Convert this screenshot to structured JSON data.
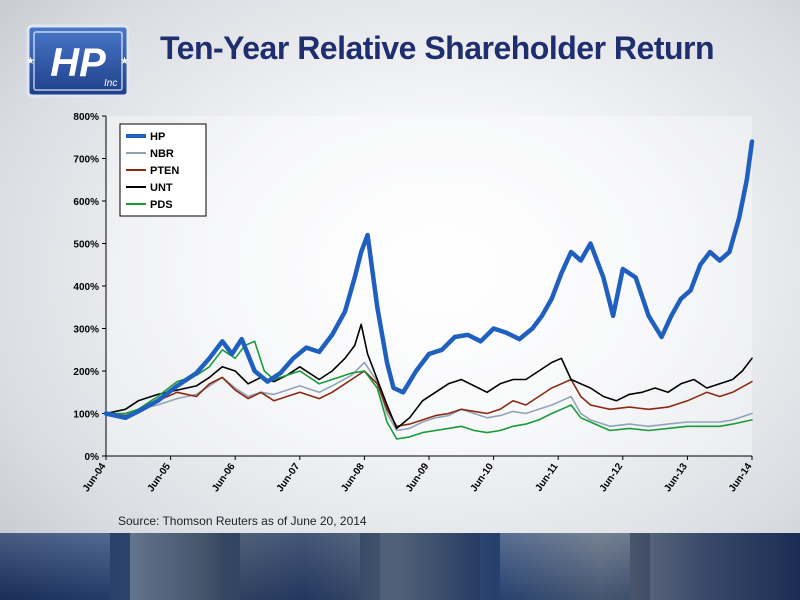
{
  "header": {
    "title": "Ten-Year Relative Shareholder Return",
    "logo_text": "H&P Inc"
  },
  "footer": {
    "source": "Source: Thomson Reuters as of June 20, 2014"
  },
  "colors": {
    "title": "#1e2e6e",
    "HP": "#1f5fc0",
    "NBR": "#8fa4b8",
    "PTEN": "#8b2a12",
    "UNT": "#000000",
    "PDS": "#1a9a3a"
  },
  "chart_data": {
    "type": "line",
    "title": "",
    "xlabel": "",
    "ylabel": "",
    "ylim": [
      0,
      800
    ],
    "yticks": [
      0,
      100,
      200,
      300,
      400,
      500,
      600,
      700,
      800
    ],
    "ytick_labels": [
      "0%",
      "100%",
      "200%",
      "300%",
      "400%",
      "500%",
      "600%",
      "700%",
      "800%"
    ],
    "xlim": [
      2004.5,
      2014.5
    ],
    "xticks": [
      2004.5,
      2005.5,
      2006.5,
      2007.5,
      2008.5,
      2009.5,
      2010.5,
      2011.5,
      2012.5,
      2013.5,
      2014.5
    ],
    "xtick_labels": [
      "Jun-04",
      "Jun-05",
      "Jun-06",
      "Jun-07",
      "Jun-08",
      "Jun-09",
      "Jun-10",
      "Jun-11",
      "Jun-12",
      "Jun-13",
      "Jun-14"
    ],
    "legend_position": "top-left",
    "grid": false,
    "series": [
      {
        "name": "HP",
        "color": "#1f5fc0",
        "width": 4.5,
        "x": [
          2004.5,
          2004.8,
          2005.0,
          2005.3,
          2005.6,
          2005.9,
          2006.1,
          2006.3,
          2006.45,
          2006.6,
          2006.8,
          2007.0,
          2007.2,
          2007.4,
          2007.6,
          2007.8,
          2008.0,
          2008.2,
          2008.35,
          2008.45,
          2008.55,
          2008.7,
          2008.85,
          2008.95,
          2009.1,
          2009.3,
          2009.5,
          2009.7,
          2009.9,
          2010.1,
          2010.3,
          2010.5,
          2010.7,
          2010.9,
          2011.1,
          2011.25,
          2011.4,
          2011.55,
          2011.7,
          2011.85,
          2012.0,
          2012.2,
          2012.35,
          2012.5,
          2012.7,
          2012.9,
          2013.1,
          2013.25,
          2013.4,
          2013.55,
          2013.7,
          2013.85,
          2014.0,
          2014.15,
          2014.3,
          2014.42,
          2014.5
        ],
        "values": [
          100,
          90,
          105,
          130,
          165,
          195,
          230,
          270,
          240,
          275,
          200,
          175,
          195,
          230,
          255,
          245,
          285,
          340,
          420,
          480,
          520,
          350,
          220,
          160,
          150,
          200,
          240,
          250,
          280,
          285,
          270,
          300,
          290,
          275,
          300,
          330,
          370,
          430,
          480,
          460,
          500,
          420,
          330,
          440,
          420,
          330,
          280,
          330,
          370,
          390,
          450,
          480,
          460,
          480,
          560,
          650,
          740
        ]
      },
      {
        "name": "NBR",
        "color": "#8fa4b8",
        "width": 1.6,
        "x": [
          2004.5,
          2004.8,
          2005.0,
          2005.3,
          2005.6,
          2005.9,
          2006.1,
          2006.3,
          2006.5,
          2006.7,
          2006.9,
          2007.1,
          2007.3,
          2007.5,
          2007.8,
          2008.0,
          2008.3,
          2008.5,
          2008.7,
          2008.85,
          2009.0,
          2009.2,
          2009.4,
          2009.6,
          2009.8,
          2010.0,
          2010.2,
          2010.4,
          2010.6,
          2010.8,
          2011.0,
          2011.2,
          2011.4,
          2011.55,
          2011.7,
          2011.85,
          2012.0,
          2012.3,
          2012.6,
          2012.9,
          2013.2,
          2013.5,
          2013.8,
          2014.0,
          2014.2,
          2014.5
        ],
        "values": [
          100,
          95,
          110,
          120,
          135,
          145,
          165,
          185,
          160,
          140,
          150,
          145,
          155,
          165,
          150,
          165,
          190,
          220,
          175,
          100,
          60,
          65,
          80,
          90,
          95,
          110,
          100,
          90,
          95,
          105,
          100,
          110,
          120,
          130,
          140,
          100,
          85,
          70,
          75,
          70,
          75,
          80,
          80,
          80,
          85,
          100
        ]
      },
      {
        "name": "PTEN",
        "color": "#8b2a12",
        "width": 1.6,
        "x": [
          2004.5,
          2004.8,
          2005.0,
          2005.3,
          2005.6,
          2005.9,
          2006.1,
          2006.3,
          2006.5,
          2006.7,
          2006.9,
          2007.1,
          2007.3,
          2007.5,
          2007.8,
          2008.0,
          2008.3,
          2008.5,
          2008.7,
          2008.85,
          2009.0,
          2009.2,
          2009.4,
          2009.6,
          2009.8,
          2010.0,
          2010.2,
          2010.4,
          2010.6,
          2010.8,
          2011.0,
          2011.2,
          2011.4,
          2011.55,
          2011.7,
          2011.85,
          2012.0,
          2012.3,
          2012.6,
          2012.9,
          2013.2,
          2013.5,
          2013.8,
          2014.0,
          2014.2,
          2014.5
        ],
        "values": [
          100,
          95,
          105,
          130,
          150,
          140,
          170,
          185,
          155,
          135,
          150,
          130,
          140,
          150,
          135,
          150,
          180,
          200,
          170,
          110,
          70,
          75,
          85,
          95,
          100,
          110,
          105,
          100,
          110,
          130,
          120,
          140,
          160,
          170,
          180,
          140,
          120,
          110,
          115,
          110,
          115,
          130,
          150,
          140,
          150,
          175
        ]
      },
      {
        "name": "UNT",
        "color": "#000000",
        "width": 1.6,
        "x": [
          2004.5,
          2004.8,
          2005.0,
          2005.3,
          2005.6,
          2005.9,
          2006.1,
          2006.3,
          2006.5,
          2006.7,
          2006.9,
          2007.1,
          2007.3,
          2007.5,
          2007.8,
          2008.0,
          2008.2,
          2008.35,
          2008.45,
          2008.55,
          2008.7,
          2008.85,
          2009.0,
          2009.2,
          2009.4,
          2009.6,
          2009.8,
          2010.0,
          2010.2,
          2010.4,
          2010.6,
          2010.8,
          2011.0,
          2011.2,
          2011.4,
          2011.55,
          2011.7,
          2011.85,
          2012.0,
          2012.2,
          2012.4,
          2012.6,
          2012.8,
          2013.0,
          2013.2,
          2013.4,
          2013.6,
          2013.8,
          2014.0,
          2014.2,
          2014.35,
          2014.5
        ],
        "values": [
          100,
          110,
          130,
          145,
          155,
          165,
          185,
          210,
          200,
          170,
          185,
          175,
          190,
          210,
          180,
          200,
          230,
          260,
          310,
          240,
          180,
          120,
          65,
          90,
          130,
          150,
          170,
          180,
          165,
          150,
          170,
          180,
          180,
          200,
          220,
          230,
          180,
          170,
          160,
          140,
          130,
          145,
          150,
          160,
          150,
          170,
          180,
          160,
          170,
          180,
          200,
          230
        ]
      },
      {
        "name": "PDS",
        "color": "#1a9a3a",
        "width": 1.6,
        "x": [
          2004.5,
          2004.8,
          2005.0,
          2005.3,
          2005.6,
          2005.9,
          2006.1,
          2006.3,
          2006.5,
          2006.65,
          2006.8,
          2006.95,
          2007.1,
          2007.3,
          2007.5,
          2007.8,
          2008.0,
          2008.3,
          2008.5,
          2008.7,
          2008.85,
          2009.0,
          2009.2,
          2009.4,
          2009.6,
          2009.8,
          2010.0,
          2010.2,
          2010.4,
          2010.6,
          2010.8,
          2011.0,
          2011.2,
          2011.4,
          2011.55,
          2011.7,
          2011.85,
          2012.0,
          2012.3,
          2012.6,
          2012.9,
          2013.2,
          2013.5,
          2013.8,
          2014.0,
          2014.2,
          2014.5
        ],
        "values": [
          100,
          100,
          110,
          140,
          175,
          190,
          210,
          250,
          230,
          260,
          270,
          200,
          180,
          190,
          200,
          170,
          180,
          195,
          200,
          160,
          80,
          40,
          45,
          55,
          60,
          65,
          70,
          60,
          55,
          60,
          70,
          75,
          85,
          100,
          110,
          120,
          90,
          80,
          60,
          65,
          60,
          65,
          70,
          70,
          70,
          75,
          85
        ]
      }
    ]
  }
}
